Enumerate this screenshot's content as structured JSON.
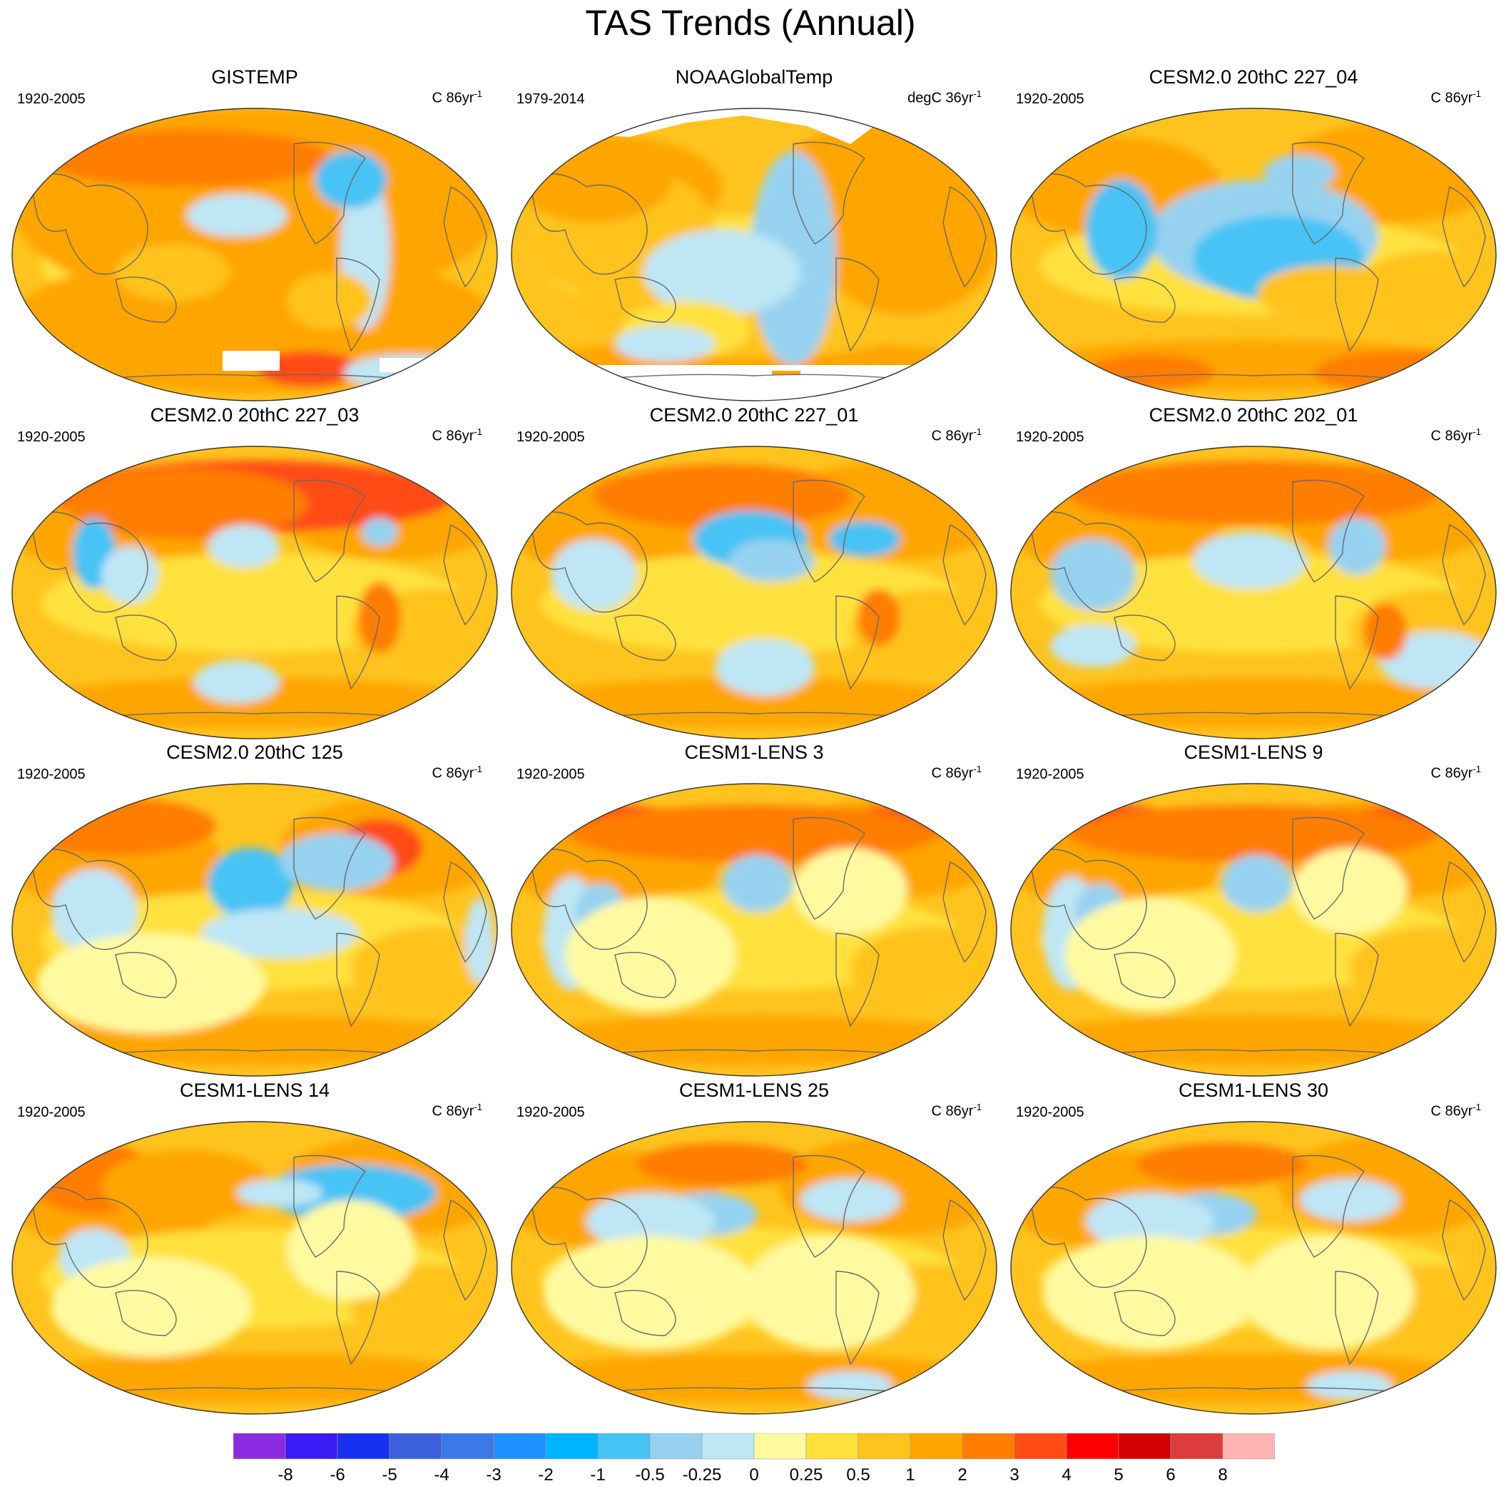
{
  "title": "TAS Trends (Annual)",
  "panels": [
    {
      "title": "GISTEMP",
      "period": "1920-2005",
      "units": "C 86yr",
      "units_exp": "-1",
      "pattern": "obs1"
    },
    {
      "title": "NOAAGlobalTemp",
      "period": "1979-2014",
      "units": "degC 36yr",
      "units_exp": "-1",
      "pattern": "obs2"
    },
    {
      "title": "CESM2.0 20thC 227_04",
      "period": "1920-2005",
      "units": "C 86yr",
      "units_exp": "-1",
      "pattern": "m1"
    },
    {
      "title": "CESM2.0 20thC 227_03",
      "period": "1920-2005",
      "units": "C 86yr",
      "units_exp": "-1",
      "pattern": "m2"
    },
    {
      "title": "CESM2.0 20thC 227_01",
      "period": "1920-2005",
      "units": "C 86yr",
      "units_exp": "-1",
      "pattern": "m3"
    },
    {
      "title": "CESM2.0 20thC 202_01",
      "period": "1920-2005",
      "units": "C 86yr",
      "units_exp": "-1",
      "pattern": "m4"
    },
    {
      "title": "CESM2.0 20thC 125",
      "period": "1920-2005",
      "units": "C 86yr",
      "units_exp": "-1",
      "pattern": "m5"
    },
    {
      "title": "CESM1-LENS 3",
      "period": "1920-2005",
      "units": "C 86yr",
      "units_exp": "-1",
      "pattern": "m6"
    },
    {
      "title": "CESM1-LENS 9",
      "period": "1920-2005",
      "units": "C 86yr",
      "units_exp": "-1",
      "pattern": "m6"
    },
    {
      "title": "CESM1-LENS 14",
      "period": "1920-2005",
      "units": "C 86yr",
      "units_exp": "-1",
      "pattern": "m7"
    },
    {
      "title": "CESM1-LENS 25",
      "period": "1920-2005",
      "units": "C 86yr",
      "units_exp": "-1",
      "pattern": "m8"
    },
    {
      "title": "CESM1-LENS 30",
      "period": "1920-2005",
      "units": "C 86yr",
      "units_exp": "-1",
      "pattern": "m8"
    }
  ],
  "colorbar": {
    "colors": [
      "#8a2be2",
      "#3a1af5",
      "#1730f0",
      "#3c5fdc",
      "#3c78e6",
      "#1e90ff",
      "#00b4ff",
      "#46c3f5",
      "#96d2f0",
      "#bee6f5",
      "#fffaa0",
      "#ffe13c",
      "#ffc31e",
      "#ffa500",
      "#ff7d00",
      "#ff4b14",
      "#ff0000",
      "#d20000",
      "#dc3c3c",
      "#ffb4b4"
    ],
    "labels": [
      "-8",
      "-6",
      "-5",
      "-4",
      "-3",
      "-2",
      "-1",
      "-0.5",
      "-0.25",
      "0",
      "0.25",
      "0.5",
      "1",
      "2",
      "3",
      "4",
      "5",
      "6",
      "8"
    ]
  }
}
